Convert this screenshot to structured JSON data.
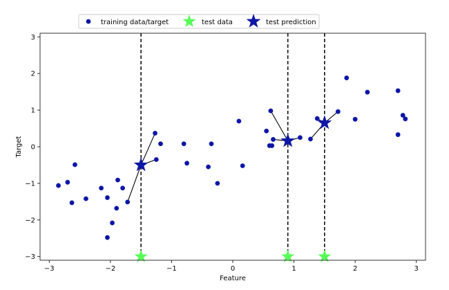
{
  "chart_data": {
    "type": "scatter",
    "title": "",
    "xlabel": "Feature",
    "ylabel": "Target",
    "xlim": [
      -3.15,
      3.15
    ],
    "ylim": [
      -3.1,
      3.1
    ],
    "xticks": [
      -3,
      -2,
      -1,
      0,
      1,
      2,
      3
    ],
    "xtick_labels": [
      "−3",
      "−2",
      "−1",
      "0",
      "1",
      "2",
      "3"
    ],
    "yticks": [
      -3,
      -2,
      -1,
      0,
      1,
      2,
      3
    ],
    "ytick_labels": [
      "−3",
      "−2",
      "−1",
      "0",
      "1",
      "2",
      "3"
    ],
    "grid": false,
    "legend_position": "top-center",
    "colors": {
      "training": "#0d17a6",
      "test_data": "#55ff55",
      "prediction": "#0d17a6",
      "connector": "#000000",
      "vline": "#000000"
    },
    "series": [
      {
        "name": "training data/target",
        "marker": "circle",
        "x": [
          -2.85,
          -2.7,
          -2.63,
          -2.58,
          -2.4,
          -2.15,
          -2.05,
          -2.05,
          -1.97,
          -1.9,
          -1.88,
          -1.8,
          -1.72,
          -1.27,
          -1.25,
          -1.18,
          -0.8,
          -0.75,
          -0.4,
          -0.35,
          -0.25,
          0.1,
          0.16,
          0.55,
          0.6,
          0.62,
          0.64,
          0.66,
          1.1,
          1.27,
          1.38,
          1.72,
          1.86,
          2.0,
          2.2,
          2.7,
          2.7,
          2.78,
          2.82
        ],
        "y": [
          -1.06,
          -0.97,
          -1.53,
          -0.49,
          -1.42,
          -1.13,
          -1.39,
          -2.48,
          -2.08,
          -1.68,
          -0.91,
          -1.13,
          -1.51,
          0.37,
          -0.35,
          0.08,
          0.08,
          -0.45,
          -0.55,
          0.08,
          -1.0,
          0.7,
          -0.52,
          0.43,
          0.03,
          0.98,
          0.03,
          0.2,
          0.25,
          0.21,
          0.77,
          0.96,
          1.88,
          0.75,
          1.49,
          1.53,
          0.33,
          0.86,
          0.76
        ]
      },
      {
        "name": "test data",
        "marker": "star",
        "x": [
          -1.5,
          0.9,
          1.5
        ],
        "y": [
          -3.0,
          -3.0,
          -3.0
        ]
      },
      {
        "name": "test prediction",
        "marker": "star",
        "x": [
          -1.5,
          0.9,
          1.5
        ],
        "y": [
          -0.5,
          0.16,
          0.65
        ]
      }
    ],
    "neighbor_links": [
      {
        "test": 0,
        "x": [
          -1.27,
          -1.25,
          -1.72
        ]
      },
      {
        "test": 1,
        "x": [
          0.62,
          0.66,
          1.1
        ]
      },
      {
        "test": 2,
        "x": [
          1.38,
          1.72,
          1.27
        ]
      }
    ]
  }
}
